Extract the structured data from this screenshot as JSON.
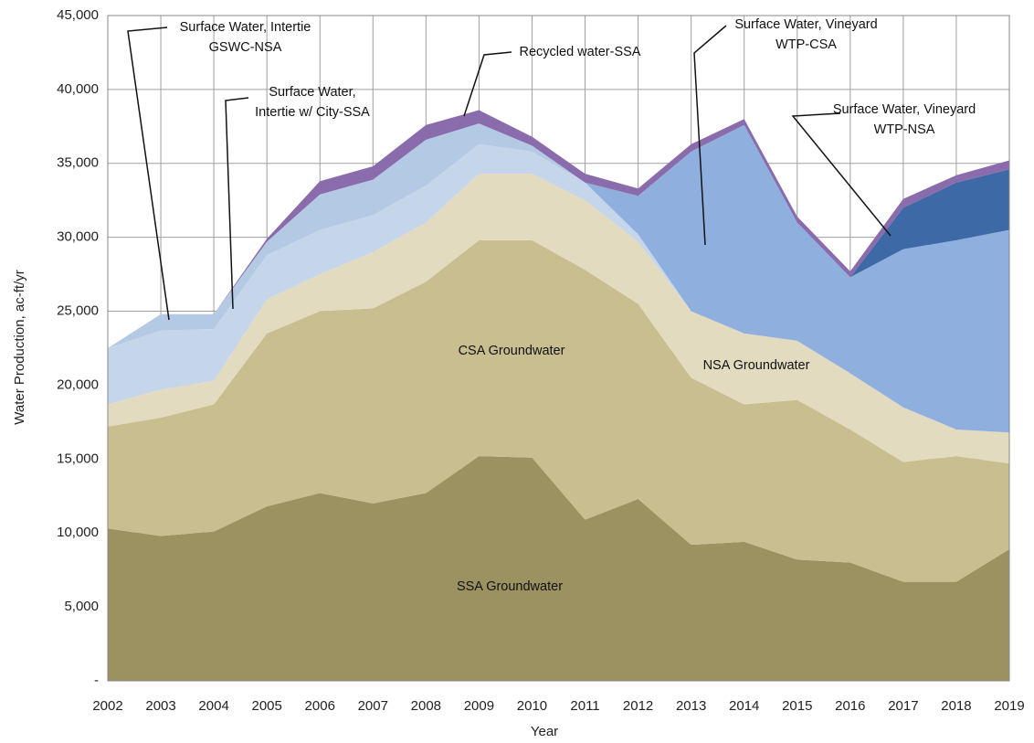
{
  "chart_data": {
    "type": "stacked_area",
    "x_label": "Year",
    "y_label": "Water Production, ac-ft/yr",
    "x": [
      2002,
      2003,
      2004,
      2005,
      2006,
      2007,
      2008,
      2009,
      2010,
      2011,
      2012,
      2013,
      2014,
      2015,
      2016,
      2017,
      2018,
      2019
    ],
    "xlim": [
      2002,
      2019
    ],
    "xticks": [
      2002,
      2003,
      2004,
      2005,
      2006,
      2007,
      2008,
      2009,
      2010,
      2011,
      2012,
      2013,
      2014,
      2015,
      2016,
      2017,
      2018,
      2019
    ],
    "ylim": [
      0,
      45000
    ],
    "yticks": [
      {
        "value": 0,
        "label": "-"
      },
      {
        "value": 5000,
        "label": "5,000"
      },
      {
        "value": 10000,
        "label": "10,000"
      },
      {
        "value": 15000,
        "label": "15,000"
      },
      {
        "value": 20000,
        "label": "20,000"
      },
      {
        "value": 25000,
        "label": "25,000"
      },
      {
        "value": 30000,
        "label": "30,000"
      },
      {
        "value": 35000,
        "label": "35,000"
      },
      {
        "value": 40000,
        "label": "40,000"
      },
      {
        "value": 45000,
        "label": "45,000"
      }
    ],
    "grid": true,
    "series": [
      {
        "name": "SSA Groundwater",
        "color": "#9c9160",
        "values": [
          10300,
          9800,
          10100,
          11800,
          12700,
          12000,
          12700,
          15200,
          15100,
          10900,
          12300,
          9200,
          9400,
          8200,
          8000,
          6700,
          6700,
          8900
        ]
      },
      {
        "name": "CSA Groundwater",
        "color": "#c9be8f",
        "values": [
          6900,
          8000,
          8600,
          11700,
          12300,
          13200,
          14300,
          14600,
          14700,
          16900,
          13200,
          11300,
          9300,
          10800,
          9000,
          8100,
          8500,
          5800
        ]
      },
      {
        "name": "NSA Groundwater",
        "color": "#e3dbbf",
        "values": [
          1500,
          1900,
          1600,
          2300,
          2500,
          3800,
          4000,
          4500,
          4500,
          4700,
          4200,
          4500,
          4800,
          4000,
          3800,
          3700,
          1800,
          2100
        ]
      },
      {
        "name": "Surface Water, Intertie GSWC-NSA",
        "color": "#c6d6ea",
        "values": [
          3800,
          4000,
          3500,
          3000,
          3000,
          2500,
          2500,
          2000,
          1500,
          1200,
          500,
          0,
          0,
          0,
          0,
          0,
          0,
          0
        ]
      },
      {
        "name": "Surface Water, Intertie w/ City-SSA",
        "color": "#b4c9e4",
        "values": [
          0,
          1100,
          1000,
          900,
          2400,
          2400,
          3100,
          1400,
          400,
          0,
          0,
          0,
          0,
          0,
          0,
          0,
          0,
          0
        ]
      },
      {
        "name": "Surface Water, Vineyard WTP-CSA",
        "color": "#8fb0df",
        "values": [
          0,
          0,
          0,
          0,
          0,
          0,
          0,
          0,
          0,
          0,
          2600,
          10800,
          14100,
          8000,
          6500,
          10700,
          12800,
          13700
        ]
      },
      {
        "name": "Surface Water, Vineyard WTP-NSA",
        "color": "#3d6aa6",
        "values": [
          0,
          0,
          0,
          0,
          0,
          0,
          0,
          0,
          0,
          0,
          0,
          0,
          0,
          0,
          0,
          2800,
          3900,
          4100
        ]
      },
      {
        "name": "Recycled water-SSA",
        "color": "#8a6bab",
        "values": [
          0,
          0,
          0,
          200,
          900,
          900,
          1000,
          900,
          600,
          600,
          500,
          500,
          400,
          400,
          400,
          600,
          500,
          600
        ]
      }
    ]
  }
}
